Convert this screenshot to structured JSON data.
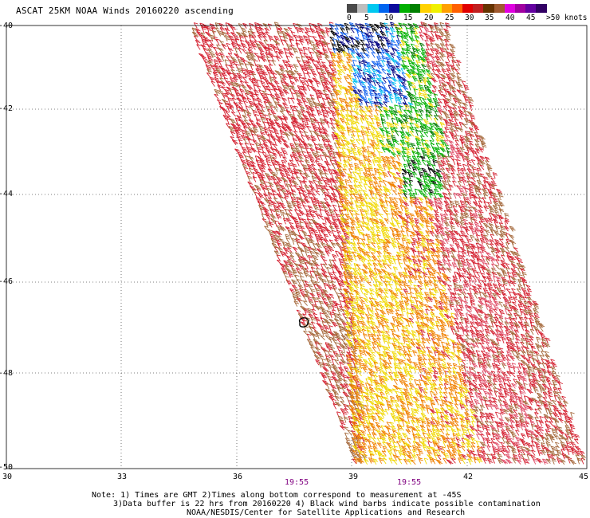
{
  "title": "ASCAT 25KM NOAA Winds 20160220 ascending",
  "legend": {
    "labels": [
      "0",
      "5",
      "10",
      "15",
      "20",
      "25",
      "30",
      "35",
      "40",
      "45",
      ">50 knots"
    ],
    "colors": [
      "#4a4a4a",
      "#bdbdbd",
      "#00c8f0",
      "#0064f0",
      "#0c0c9c",
      "#00b000",
      "#008000",
      "#ffd200",
      "#f0f000",
      "#ffa000",
      "#ff6000",
      "#e00000",
      "#c02020",
      "#663300",
      "#a05a30",
      "#e000e0",
      "#a000a0",
      "#6400a0",
      "#320064"
    ]
  },
  "axes": {
    "lat_labels": [
      "-40",
      "-42",
      "-44",
      "-46",
      "-48",
      "-50"
    ],
    "lon_labels": [
      "30",
      "33",
      "36",
      "39",
      "42",
      "45"
    ]
  },
  "times": [
    "19:55",
    "19:55"
  ],
  "notes": {
    "line1": "Note: 1) Times are GMT 2)Times along bottom correspond to measurement at -45S",
    "line2": "3)Data buffer is 22 hrs from 20160220 4) Black wind barbs indicate possible contamination",
    "line3": "NOAA/NESDIS/Center for Satellite Applications and Research"
  },
  "swath_colors": {
    "red": "#d42030",
    "brown": "#a5693c",
    "orange": "#f08000",
    "yellow": "#f0d800",
    "green": "#00b000",
    "darkgreen": "#007800",
    "blue": "#1060f0",
    "cyan": "#00c0f0",
    "navy": "#000080",
    "black": "#000000",
    "pink": "#e0506a"
  }
}
